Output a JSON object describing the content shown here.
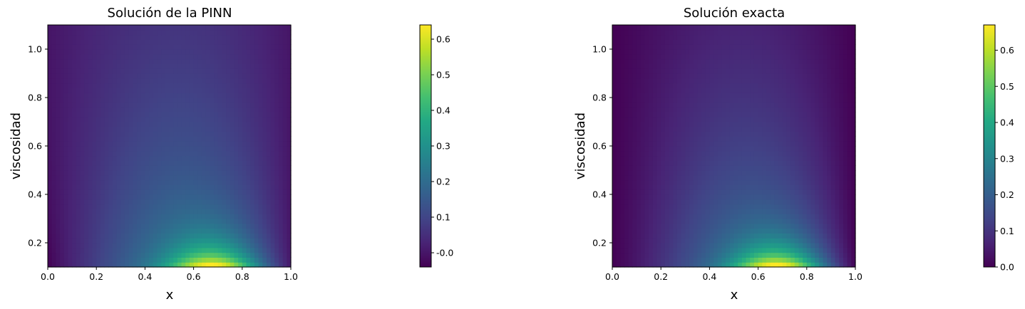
{
  "chart_data": [
    {
      "type": "heatmap",
      "title": "Solución de la PINN",
      "xlabel": "x",
      "ylabel": "viscosidad",
      "xlim": [
        0.0,
        1.0
      ],
      "ylim": [
        0.1,
        1.1
      ],
      "x_ticks": [
        "0.0",
        "0.2",
        "0.4",
        "0.6",
        "0.8",
        "1.0"
      ],
      "y_ticks": [
        "0.2",
        "0.4",
        "0.6",
        "0.8",
        "1.0"
      ],
      "colormap": "viridis",
      "colorbar": {
        "min": -0.04,
        "max": 0.64,
        "ticks": [
          "-0.0",
          "0.1",
          "0.2",
          "0.3",
          "0.4",
          "0.5",
          "0.6"
        ]
      },
      "field_description_values": {
        "peak_value": 0.64,
        "peak_x": 0.7,
        "peak_nu": 0.1,
        "edge_value_left": -0.04,
        "edge_value_right": 0.0
      }
    },
    {
      "type": "heatmap",
      "title": "Solución exacta",
      "xlabel": "x",
      "ylabel": "viscosidad",
      "xlim": [
        0.0,
        1.0
      ],
      "ylim": [
        0.1,
        1.1
      ],
      "x_ticks": [
        "0.0",
        "0.2",
        "0.4",
        "0.6",
        "0.8",
        "1.0"
      ],
      "y_ticks": [
        "0.2",
        "0.4",
        "0.6",
        "0.8",
        "1.0"
      ],
      "colormap": "viridis",
      "colorbar": {
        "min": 0.0,
        "max": 0.67,
        "ticks": [
          "0.0",
          "0.1",
          "0.2",
          "0.3",
          "0.4",
          "0.5",
          "0.6"
        ]
      },
      "field_description_values": {
        "peak_value": 0.67,
        "peak_x": 0.7,
        "peak_nu": 0.1,
        "edge_value_left": 0.0,
        "edge_value_right": 0.0
      }
    }
  ]
}
